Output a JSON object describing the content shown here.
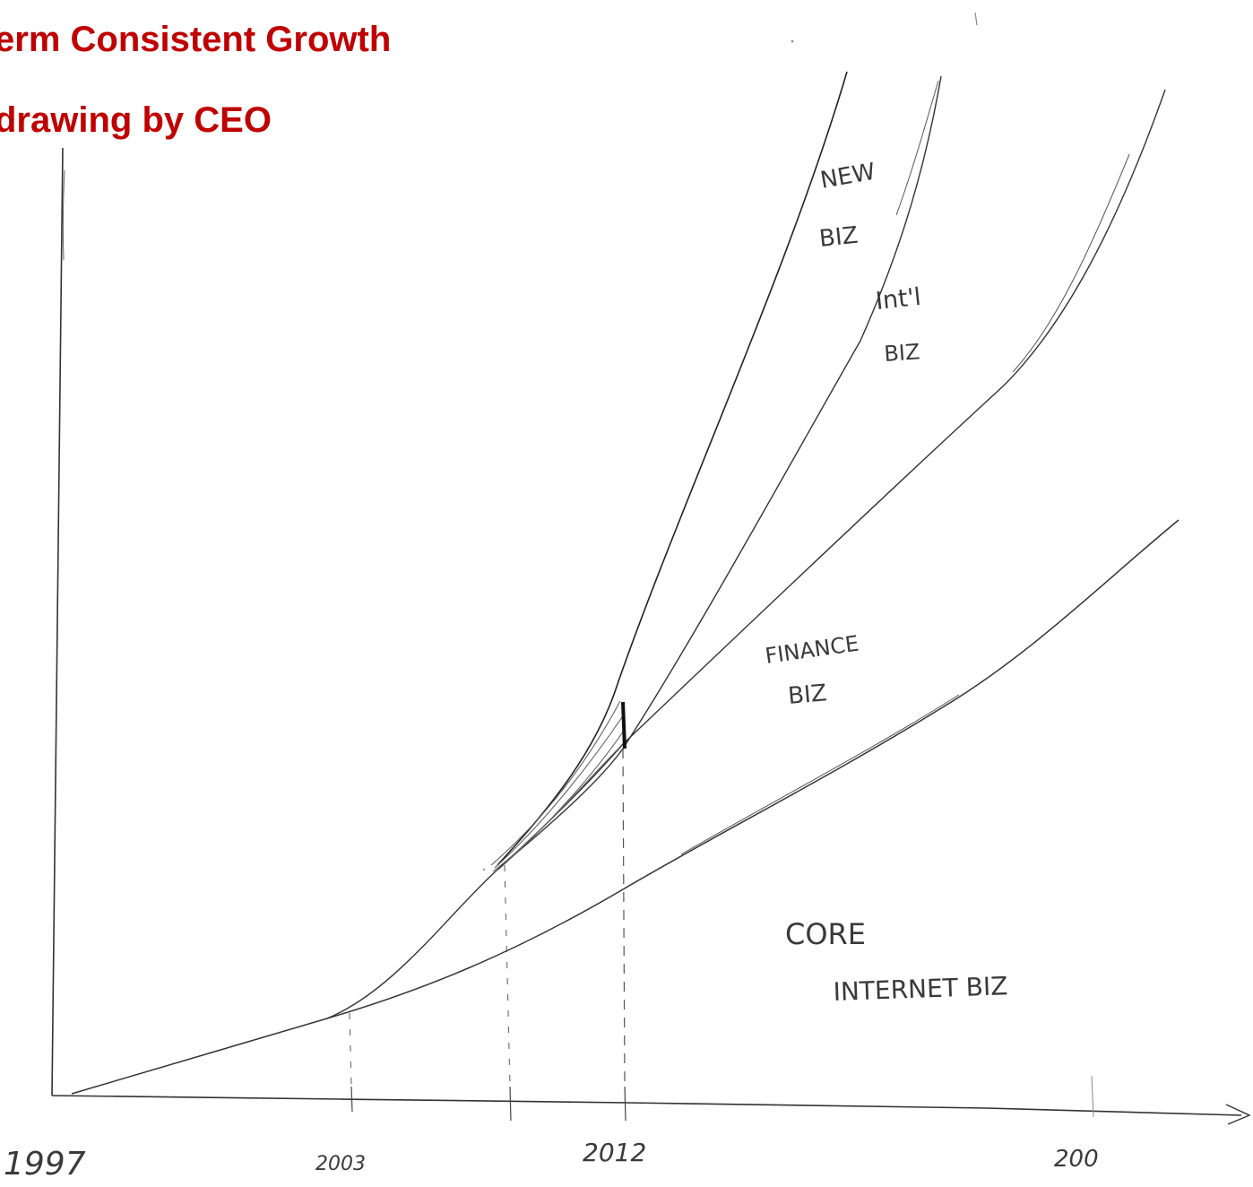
{
  "title": "erm Consistent Growth",
  "subtitle": "drawing by CEO",
  "colors": {
    "title": "#c00000",
    "ink": "#3a3a3a"
  },
  "axis_labels": {
    "x0": "1997",
    "x1": "2003",
    "x2": "2012",
    "x3": "200"
  },
  "curve_labels": {
    "new_line1": "NEW",
    "new_line2": "BIZ",
    "intl_line1": "Int'l",
    "intl_line2": "BIZ",
    "finance_line1": "FINANCE",
    "finance_line2": "BIZ",
    "core_line1": "CORE",
    "core_line2": "INTERNET BIZ"
  }
}
